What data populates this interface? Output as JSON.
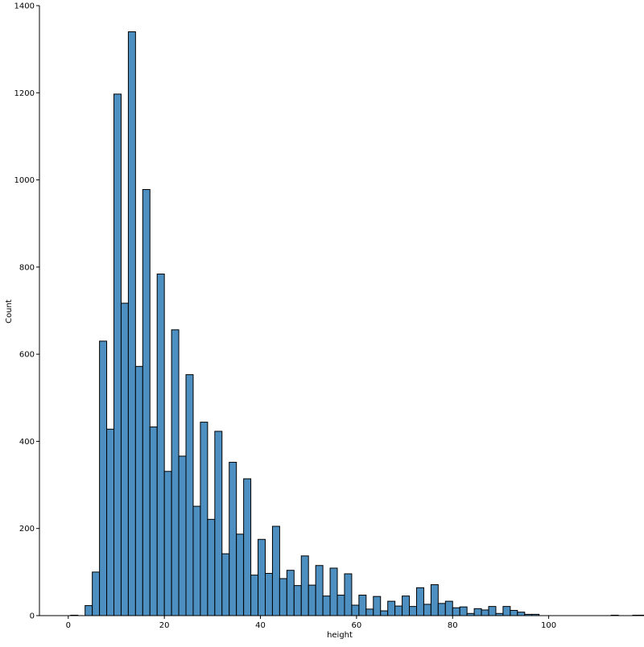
{
  "chart_data": {
    "type": "bar",
    "subtype": "histogram",
    "xlabel": "height",
    "ylabel": "Count",
    "xlim": [
      -6,
      119
    ],
    "ylim": [
      0,
      1400
    ],
    "xticks": [
      0,
      20,
      40,
      60,
      80,
      100
    ],
    "yticks": [
      0,
      200,
      400,
      600,
      800,
      1000,
      1200,
      1400
    ],
    "grid": false,
    "bin_start": 0.5,
    "bin_width": 1.5,
    "values": [
      1,
      0,
      23,
      100,
      630,
      428,
      1197,
      717,
      1340,
      572,
      978,
      433,
      784,
      331,
      656,
      366,
      553,
      251,
      444,
      221,
      423,
      142,
      352,
      187,
      314,
      93,
      175,
      97,
      205,
      85,
      104,
      69,
      137,
      70,
      115,
      45,
      109,
      47,
      96,
      24,
      47,
      15,
      44,
      11,
      33,
      22,
      45,
      21,
      64,
      26,
      71,
      28,
      33,
      18,
      20,
      5,
      16,
      13,
      21,
      5,
      21,
      12,
      8,
      3,
      3,
      0,
      0,
      0,
      0,
      0,
      0,
      0,
      0,
      0,
      0,
      1,
      0,
      0,
      1,
      1,
      1
    ],
    "colors": {
      "bar_fill": "#4c8fc0",
      "bar_edge": "#000000",
      "axis": "#000000"
    }
  }
}
